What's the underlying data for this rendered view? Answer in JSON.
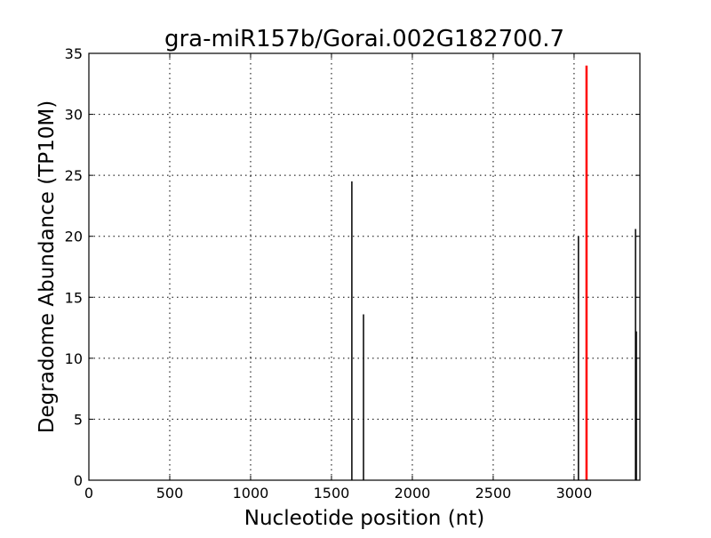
{
  "chart_data": {
    "type": "bar",
    "title": "gra-miR157b/Gorai.002G182700.7",
    "xlabel": "Nucleotide position (nt)",
    "ylabel": "Degradome Abundance (TP10M)",
    "xlim": [
      0,
      3407
    ],
    "ylim": [
      0,
      35
    ],
    "xticks": [
      0,
      500,
      1000,
      1500,
      2000,
      2500,
      3000
    ],
    "yticks": [
      0,
      5,
      10,
      15,
      20,
      25,
      30,
      35
    ],
    "grid": true,
    "series": [
      {
        "color": "#000000",
        "points": [
          {
            "x": 1626,
            "y": 24.5
          },
          {
            "x": 1698,
            "y": 13.6
          },
          {
            "x": 3027,
            "y": 20.0
          },
          {
            "x": 3380,
            "y": 20.6
          },
          {
            "x": 3385,
            "y": 12.2
          }
        ]
      },
      {
        "color": "#ff0000",
        "points": [
          {
            "x": 3077,
            "y": 34.0
          }
        ]
      }
    ]
  }
}
